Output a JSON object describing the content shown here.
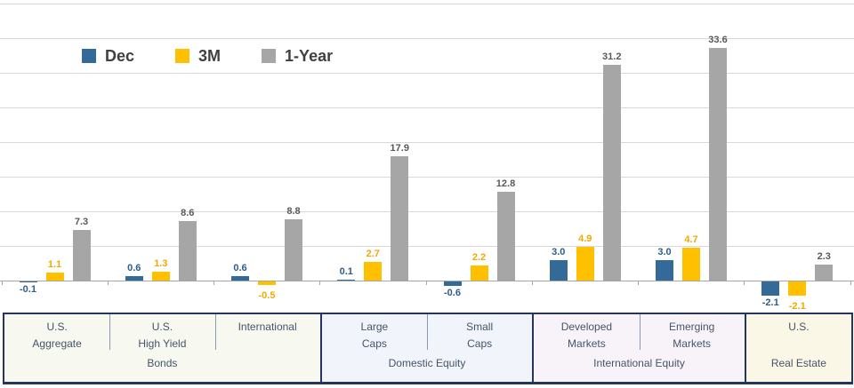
{
  "chart_data": {
    "type": "bar",
    "title": "",
    "xlabel": "",
    "ylabel": "",
    "ylim": [
      -5,
      40
    ],
    "gridline_step": 5,
    "grid": true,
    "legend_position": "top-left",
    "value_labels": true,
    "categories": [
      "U.S. Aggregate",
      "U.S. High Yield",
      "International",
      "Large Caps",
      "Small Caps",
      "Developed Markets",
      "Emerging Markets",
      "U.S."
    ],
    "category_groups": [
      "Bonds",
      "Bonds",
      "Bonds",
      "Domestic Equity",
      "Domestic Equity",
      "International Equity",
      "International Equity",
      "Real Estate"
    ],
    "series": [
      {
        "name": "Dec",
        "color": "#336a97",
        "label_color": "#2a5e8c",
        "values": [
          -0.1,
          0.6,
          0.6,
          0.1,
          -0.6,
          3.0,
          3.0,
          -2.1
        ]
      },
      {
        "name": "3M",
        "color": "#ffc000",
        "label_color": "#f2a900",
        "values": [
          1.1,
          1.3,
          -0.5,
          2.7,
          2.2,
          4.9,
          4.7,
          -2.1
        ]
      },
      {
        "name": "1-Year",
        "color": "#a6a6a6",
        "label_color": "#595959",
        "values": [
          7.3,
          8.6,
          8.8,
          17.9,
          12.8,
          31.2,
          33.6,
          2.3
        ]
      }
    ]
  },
  "legend": {
    "items": [
      {
        "label": "Dec",
        "color": "#336a97"
      },
      {
        "label": "3M",
        "color": "#ffc000"
      },
      {
        "label": "1-Year",
        "color": "#a6a6a6"
      }
    ]
  },
  "table": {
    "groups": [
      {
        "label": "Bonds",
        "bg": "#f7f9f0",
        "cells": [
          [
            "U.S.",
            "Aggregate"
          ],
          [
            "U.S.",
            "High Yield"
          ],
          [
            "International"
          ]
        ]
      },
      {
        "label": "Domestic Equity",
        "bg": "#f1f4fa",
        "cells": [
          [
            "Large",
            "Caps"
          ],
          [
            "Small",
            "Caps"
          ]
        ]
      },
      {
        "label": "International Equity",
        "bg": "#f8f3f9",
        "cells": [
          [
            "Developed",
            "Markets"
          ],
          [
            "Emerging",
            "Markets"
          ]
        ]
      },
      {
        "label": "Real Estate",
        "bg": "#fbf7e6",
        "cells": [
          [
            "U.S."
          ]
        ]
      }
    ]
  },
  "colors": {
    "gridline": "#d9d9d9",
    "axis": "#a6a6a6",
    "legend_text": "#404040",
    "table_border": "#26355b",
    "table_divider": "#8a99b5",
    "table_text": "#44546a"
  }
}
